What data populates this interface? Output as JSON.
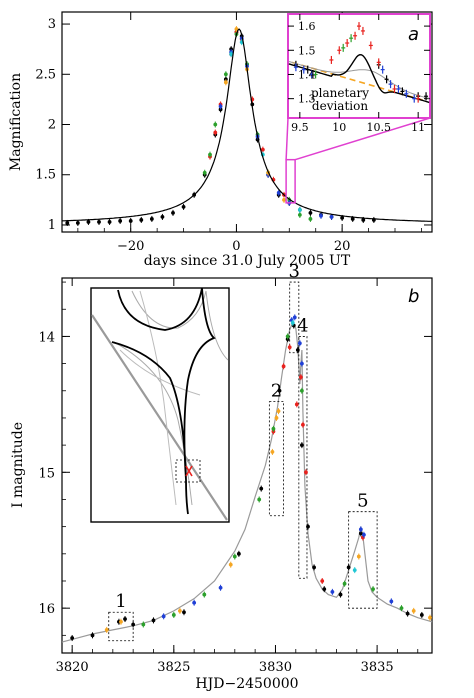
{
  "chart_data": [
    {
      "type": "scatter",
      "panel_letter": "",
      "xlabel": "days since 31.0 July 2005 UT",
      "ylabel": "Magnification",
      "xlim": [
        -33,
        37
      ],
      "ylim": [
        0.93,
        3.12
      ],
      "xticks": [
        "−20",
        "0",
        "20"
      ],
      "xtick_values": [
        -20,
        0,
        20
      ],
      "yticks": [
        "1",
        "1.5",
        "2",
        "2.5",
        "3"
      ],
      "ytick_values": [
        1,
        1.5,
        2,
        2.5,
        3
      ],
      "model": {
        "t0": 0.5,
        "peak": 2.95,
        "tE": 5.6,
        "baseline": 1.0
      },
      "series": [
        {
          "color": "#000000",
          "x": [
            -32,
            -30,
            -28,
            -26,
            -24,
            -22,
            -20,
            -18,
            -16,
            -14,
            -12,
            -10,
            -8,
            -6,
            -4,
            -3,
            -2,
            -1,
            0,
            1,
            2,
            3,
            4,
            6,
            8,
            10,
            12,
            14,
            16,
            18,
            20,
            22,
            24,
            26
          ],
          "y": [
            1.02,
            1.02,
            1.03,
            1.03,
            1.03,
            1.04,
            1.04,
            1.05,
            1.06,
            1.08,
            1.12,
            1.18,
            1.3,
            1.5,
            1.9,
            2.15,
            2.45,
            2.75,
            2.92,
            2.88,
            2.6,
            2.2,
            1.85,
            1.5,
            1.3,
            1.22,
            1.15,
            1.12,
            1.1,
            1.08,
            1.07,
            1.06,
            1.05,
            1.05
          ]
        },
        {
          "color": "#e8221e",
          "x": [
            -5,
            -4,
            -3,
            -1,
            0,
            1,
            3,
            5,
            7,
            9
          ],
          "y": [
            1.68,
            1.92,
            2.2,
            2.7,
            2.92,
            2.85,
            2.25,
            1.75,
            1.45,
            1.3
          ]
        },
        {
          "color": "#2ca02c",
          "x": [
            -6,
            -5,
            -4,
            -2,
            0,
            2,
            4,
            6,
            10,
            12,
            14
          ],
          "y": [
            1.52,
            1.7,
            2.0,
            2.5,
            2.9,
            2.6,
            1.9,
            1.52,
            1.25,
            1.1,
            1.06
          ]
        },
        {
          "color": "#1f3fd6",
          "x": [
            -3,
            -1,
            1,
            2,
            4,
            6,
            8,
            10,
            16,
            18
          ],
          "y": [
            2.18,
            2.72,
            2.86,
            2.58,
            1.88,
            1.5,
            1.32,
            1.22,
            1.09,
            1.08
          ]
        },
        {
          "color": "#f5a623",
          "x": [
            -2,
            0,
            2,
            6,
            9
          ],
          "y": [
            2.42,
            2.95,
            2.55,
            1.52,
            1.25
          ]
        },
        {
          "color": "#1fc7d4",
          "x": [
            -1,
            1,
            5,
            12
          ],
          "y": [
            2.7,
            2.82,
            1.7,
            1.15
          ]
        }
      ],
      "inset": {
        "panel_letter": "a",
        "xlim": [
          9.35,
          11.15
        ],
        "ylim": [
          1.22,
          1.65
        ],
        "xticks": [
          "9.5",
          "10",
          "10.5",
          "11"
        ],
        "xtick_values": [
          9.5,
          10,
          10.5,
          11
        ],
        "yticks": [
          "1.3",
          "1.4",
          "1.5",
          "1.6"
        ],
        "ytick_values": [
          1.3,
          1.4,
          1.5,
          1.6
        ],
        "annotation_line1": "planetary",
        "annotation_line2": "deviation",
        "series": [
          {
            "color": "#000000",
            "x": [
              9.45,
              9.6,
              10.5,
              10.6,
              10.8,
              11.0,
              11.1
            ],
            "y": [
              1.44,
              1.42,
              1.44,
              1.38,
              1.33,
              1.31,
              1.31
            ]
          },
          {
            "color": "#e8221e",
            "x": [
              9.9,
              10.0,
              10.1,
              10.2,
              10.25,
              10.3,
              10.4,
              10.5,
              10.7,
              11.0
            ],
            "y": [
              1.46,
              1.5,
              1.53,
              1.56,
              1.6,
              1.58,
              1.52,
              1.45,
              1.34,
              1.3
            ]
          },
          {
            "color": "#1f3fd6",
            "x": [
              9.45,
              9.55,
              9.65,
              10.55,
              10.65,
              10.75,
              10.85,
              10.95
            ],
            "y": [
              1.43,
              1.42,
              1.4,
              1.42,
              1.36,
              1.34,
              1.32,
              1.3
            ]
          },
          {
            "color": "#2ca02c",
            "x": [
              9.7,
              10.05,
              10.15
            ],
            "y": [
              1.4,
              1.51,
              1.55
            ]
          }
        ]
      }
    },
    {
      "type": "scatter",
      "panel_letter": "b",
      "xlabel": "HJD−2450000",
      "ylabel": "I magnitude",
      "xlim": [
        3819.5,
        3837.7
      ],
      "ylim": [
        16.33,
        13.57
      ],
      "xticks": [
        "3820",
        "3825",
        "3830",
        "3835"
      ],
      "xtick_values": [
        3820,
        3825,
        3830,
        3835
      ],
      "yticks": [
        "14",
        "15",
        "16"
      ],
      "ytick_values": [
        14,
        15,
        16
      ],
      "curve": {
        "x": [
          3819.5,
          3821,
          3822,
          3823,
          3824,
          3825,
          3826,
          3827,
          3828,
          3828.5,
          3829,
          3829.5,
          3829.8,
          3830.1,
          3830.3,
          3830.5,
          3830.7,
          3830.85,
          3831.0,
          3831.1,
          3831.2,
          3831.25,
          3831.3,
          3831.35,
          3831.45,
          3831.6,
          3831.8,
          3832.0,
          3832.3,
          3832.6,
          3833.0,
          3833.3,
          3833.6,
          3833.9,
          3834.1,
          3834.2,
          3834.3,
          3834.4,
          3834.55,
          3834.75,
          3835.0,
          3835.5,
          3836,
          3836.5,
          3837,
          3837.7
        ],
        "y": [
          16.25,
          16.19,
          16.16,
          16.13,
          16.09,
          16.02,
          15.93,
          15.8,
          15.58,
          15.42,
          15.18,
          14.95,
          14.76,
          14.52,
          14.3,
          14.1,
          13.95,
          13.9,
          13.94,
          14.08,
          14.35,
          14.2,
          14.1,
          14.55,
          15.1,
          15.45,
          15.68,
          15.78,
          15.86,
          15.9,
          15.92,
          15.86,
          15.72,
          15.58,
          15.48,
          15.4,
          15.47,
          15.6,
          15.8,
          15.88,
          15.92,
          15.97,
          16.0,
          16.04,
          16.07,
          16.1
        ]
      },
      "series": [
        {
          "color": "#000000",
          "x": [
            3820,
            3821,
            3822.3,
            3822.6,
            3823,
            3824,
            3825.5,
            3828.2,
            3829.3,
            3830.2,
            3830.6,
            3830.9,
            3831.1,
            3831.3,
            3831.6,
            3831.9,
            3832.4,
            3833.2,
            3833.6,
            3834.2,
            3836.5,
            3837.2
          ],
          "y": [
            16.22,
            16.2,
            16.1,
            16.08,
            16.12,
            16.09,
            16.03,
            15.6,
            15.12,
            14.4,
            14.02,
            13.92,
            14.1,
            14.8,
            15.4,
            15.7,
            15.86,
            15.9,
            15.7,
            15.45,
            16.04,
            16.05
          ]
        },
        {
          "color": "#e8221e",
          "x": [
            3829.9,
            3830.4,
            3830.7,
            3831.05,
            3831.25,
            3831.35,
            3831.5,
            3832.3,
            3834.3
          ],
          "y": [
            14.7,
            14.22,
            14.08,
            14.5,
            14.3,
            14.65,
            15.0,
            15.8,
            15.48
          ]
        },
        {
          "color": "#2ca02c",
          "x": [
            3823.5,
            3825,
            3826.5,
            3828,
            3829.2,
            3829.9,
            3830.6,
            3831.3,
            3833.4,
            3834.8,
            3836.2
          ],
          "y": [
            16.12,
            16.05,
            15.9,
            15.62,
            15.2,
            14.68,
            14.0,
            14.4,
            15.82,
            15.86,
            16.0
          ]
        },
        {
          "color": "#1f3fd6",
          "x": [
            3824.5,
            3826,
            3827.3,
            3830.8,
            3830.95,
            3831.2,
            3831.3,
            3832.8,
            3834.2,
            3834.35,
            3835.7
          ],
          "y": [
            16.06,
            15.96,
            15.85,
            13.88,
            13.86,
            14.05,
            14.2,
            15.88,
            15.42,
            15.46,
            15.95
          ]
        },
        {
          "color": "#f5a623",
          "x": [
            3821.7,
            3822.4,
            3825.3,
            3827.8,
            3829.85,
            3830.05,
            3830.15,
            3834.1,
            3836.8,
            3837.6
          ],
          "y": [
            16.16,
            16.1,
            16.02,
            15.68,
            14.85,
            14.6,
            14.55,
            15.62,
            16.02,
            16.07
          ]
        },
        {
          "color": "#1fc7d4",
          "x": [
            3830.85,
            3833.9
          ],
          "y": [
            13.9,
            15.72
          ]
        }
      ],
      "boxes": [
        {
          "label": "1",
          "x0": 3821.8,
          "x1": 3823.0,
          "y0": 16.03,
          "y1": 16.24
        },
        {
          "label": "2",
          "x0": 3829.7,
          "x1": 3830.4,
          "y0": 14.48,
          "y1": 15.32
        },
        {
          "label": "3",
          "x0": 3830.7,
          "x1": 3831.15,
          "y0": 13.6,
          "y1": 14.12
        },
        {
          "label": "4",
          "x0": 3831.15,
          "x1": 3831.55,
          "y0": 14.0,
          "y1": 15.78
        },
        {
          "label": "5",
          "x0": 3833.6,
          "x1": 3835.0,
          "y0": 15.29,
          "y1": 16.0
        }
      ]
    }
  ],
  "colors": {
    "inset_border": "#e040d0",
    "model_curve": "#9a9a9a",
    "dashed_line": "#f5a623"
  }
}
